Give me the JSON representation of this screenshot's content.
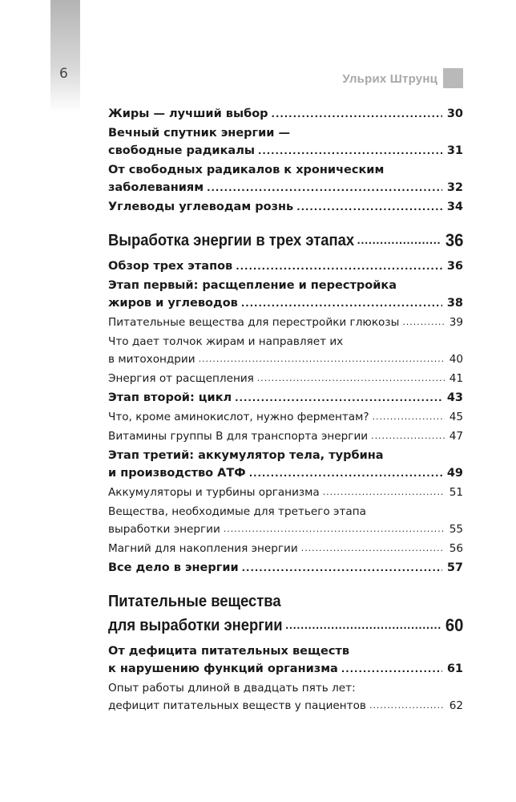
{
  "page_number": "6",
  "running_header": "Ульрих Штрунц",
  "toc": [
    {
      "style": "b",
      "lines": [
        "Жиры — лучший выбор"
      ],
      "page": "30"
    },
    {
      "style": "b",
      "lines": [
        "Вечный спутник энергии —",
        "свободные радикалы"
      ],
      "page": "31"
    },
    {
      "style": "b",
      "lines": [
        "От свободных радикалов к хроническим",
        "заболеваниям"
      ],
      "page": "32"
    },
    {
      "style": "b",
      "lines": [
        "Углеводы углеводам рознь"
      ],
      "page": "34"
    },
    {
      "style": "h",
      "lines": [
        "Выработка энергии в трех этапах"
      ],
      "page": "36"
    },
    {
      "style": "b",
      "lines": [
        "Обзор трех этапов"
      ],
      "page": "36"
    },
    {
      "style": "b",
      "lines": [
        "Этап первый: расщепление и перестройка",
        "жиров и углеводов"
      ],
      "page": "38"
    },
    {
      "style": "r",
      "lines": [
        "Питательные вещества для перестройки глюкозы"
      ],
      "page": "39"
    },
    {
      "style": "r",
      "lines": [
        "Что дает толчок жирам и направляет их",
        "в митохондрии"
      ],
      "page": "40"
    },
    {
      "style": "r",
      "lines": [
        "Энергия от расщепления"
      ],
      "page": "41"
    },
    {
      "style": "b",
      "lines": [
        "Этап второй: цикл"
      ],
      "page": "43"
    },
    {
      "style": "r",
      "lines": [
        "Что, кроме аминокислот, нужно ферментам?"
      ],
      "page": "45"
    },
    {
      "style": "r",
      "lines": [
        "Витамины группы B для транспорта энергии"
      ],
      "page": "47"
    },
    {
      "style": "b",
      "lines": [
        "Этап третий: аккумулятор тела, турбина",
        "и производство АТФ"
      ],
      "page": "49"
    },
    {
      "style": "r",
      "lines": [
        "Аккумуляторы и турбины организма"
      ],
      "page": "51"
    },
    {
      "style": "r",
      "lines": [
        "Вещества, необходимые для третьего этапа",
        "выработки энергии"
      ],
      "page": "55"
    },
    {
      "style": "r",
      "lines": [
        "Магний для накопления энергии"
      ],
      "page": "56"
    },
    {
      "style": "b",
      "lines": [
        "Все дело в энергии"
      ],
      "page": "57"
    },
    {
      "style": "h",
      "lines": [
        "Питательные вещества",
        "для выработки энергии"
      ],
      "page": "60"
    },
    {
      "style": "b",
      "lines": [
        "От дефицита питательных веществ",
        "к нарушению функций организма"
      ],
      "page": "61"
    },
    {
      "style": "r",
      "lines": [
        "Опыт работы длиной в двадцать пять лет:",
        "дефицит питательных веществ у пациентов"
      ],
      "page": "62"
    }
  ]
}
